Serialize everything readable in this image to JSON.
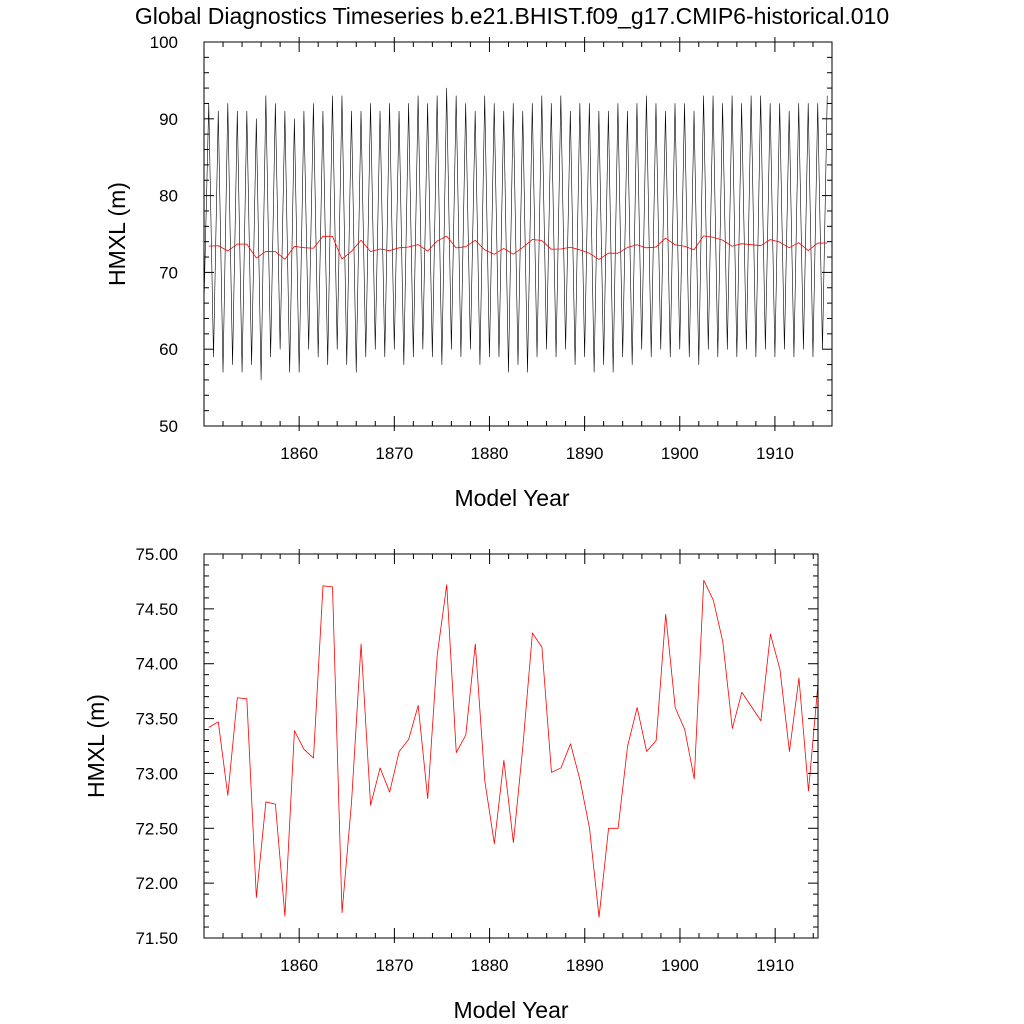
{
  "title": "Global Diagnostics Timeseries b.e21.BHIST.f09_g17.CMIP6-historical.010",
  "colors": {
    "annual": "#ff0000",
    "monthly": "#000000",
    "axis": "#000000"
  },
  "chart_data": [
    {
      "type": "line",
      "xlabel": "Model Year",
      "ylabel": "HMXL (m)",
      "xlim": [
        1850,
        1916
      ],
      "ylim": [
        50,
        100
      ],
      "xticks": [
        "1860",
        "1870",
        "1880",
        "1890",
        "1900",
        "1910"
      ],
      "yticks": [
        "50",
        "60",
        "70",
        "80",
        "90",
        "100"
      ],
      "grid": false,
      "series": [
        {
          "color": "#000000",
          "kind": "monthly",
          "x": [
            1850.0,
            1850.5,
            1851.0,
            1851.5,
            1852.0,
            1852.5,
            1853.0,
            1853.5,
            1854.0,
            1854.5,
            1855.0,
            1855.5,
            1856.0,
            1856.5,
            1857.0,
            1857.5,
            1858.0,
            1858.5,
            1859.0,
            1859.5,
            1860.0,
            1860.5,
            1861.0,
            1861.5,
            1862.0,
            1862.5,
            1863.0,
            1863.5,
            1864.0,
            1864.5,
            1865.0,
            1865.5,
            1866.0,
            1866.5,
            1867.0,
            1867.5,
            1868.0,
            1868.5,
            1869.0,
            1869.5,
            1870.0,
            1870.5,
            1871.0,
            1871.5,
            1872.0,
            1872.5,
            1873.0,
            1873.5,
            1874.0,
            1874.5,
            1875.0,
            1875.5,
            1876.0,
            1876.5,
            1877.0,
            1877.5,
            1878.0,
            1878.5,
            1879.0,
            1879.5,
            1880.0,
            1880.5,
            1881.0,
            1881.5,
            1882.0,
            1882.5,
            1883.0,
            1883.5,
            1884.0,
            1884.5,
            1885.0,
            1885.5,
            1886.0,
            1886.5,
            1887.0,
            1887.5,
            1888.0,
            1888.5,
            1889.0,
            1889.5,
            1890.0,
            1890.5,
            1891.0,
            1891.5,
            1892.0,
            1892.5,
            1893.0,
            1893.5,
            1894.0,
            1894.5,
            1895.0,
            1895.5,
            1896.0,
            1896.5,
            1897.0,
            1897.5,
            1898.0,
            1898.5,
            1899.0,
            1899.5,
            1900.0,
            1900.5,
            1901.0,
            1901.5,
            1902.0,
            1902.5,
            1903.0,
            1903.5,
            1904.0,
            1904.5,
            1905.0,
            1905.5,
            1906.0,
            1906.5,
            1907.0,
            1907.5,
            1908.0,
            1908.5,
            1909.0,
            1909.5,
            1910.0,
            1910.5,
            1911.0,
            1911.5,
            1912.0,
            1912.5,
            1913.0,
            1913.5,
            1914.0,
            1914.5,
            1915.0,
            1915.5
          ],
          "y": [
            66,
            92,
            59,
            91,
            57,
            92,
            58,
            91,
            57,
            91,
            58,
            90,
            56,
            93,
            59,
            92,
            60,
            91,
            57,
            90,
            57,
            91,
            60,
            92,
            59,
            91,
            58,
            93,
            60,
            93,
            58,
            91,
            57,
            91,
            59,
            92,
            60,
            91,
            59,
            92,
            60,
            91,
            58,
            92,
            59,
            93,
            60,
            92,
            59,
            93,
            58,
            94,
            60,
            93,
            59,
            92,
            60,
            91,
            58,
            93,
            59,
            92,
            59,
            91,
            57,
            92,
            58,
            91,
            57,
            92,
            59,
            93,
            60,
            92,
            59,
            93,
            60,
            91,
            58,
            92,
            59,
            92,
            57,
            91,
            58,
            91,
            57,
            92,
            59,
            91,
            58,
            92,
            60,
            93,
            59,
            92,
            60,
            91,
            59,
            92,
            60,
            92,
            59,
            91,
            58,
            93,
            60,
            93,
            59,
            92,
            60,
            93,
            59,
            92,
            60,
            93,
            59,
            93,
            60,
            92,
            59,
            92,
            60,
            91,
            59,
            92,
            60,
            92,
            59,
            92,
            60,
            93
          ]
        },
        {
          "color": "#ff0000",
          "kind": "annual",
          "x": [
            1850.5,
            1851.5,
            1852.5,
            1853.5,
            1854.5,
            1855.5,
            1856.5,
            1857.5,
            1858.5,
            1859.5,
            1860.5,
            1861.5,
            1862.5,
            1863.5,
            1864.5,
            1865.5,
            1866.5,
            1867.5,
            1868.5,
            1869.5,
            1870.5,
            1871.5,
            1872.5,
            1873.5,
            1874.5,
            1875.5,
            1876.5,
            1877.5,
            1878.5,
            1879.5,
            1880.5,
            1881.5,
            1882.5,
            1883.5,
            1884.5,
            1885.5,
            1886.5,
            1887.5,
            1888.5,
            1889.5,
            1890.5,
            1891.5,
            1892.5,
            1893.5,
            1894.5,
            1895.5,
            1896.5,
            1897.5,
            1898.5,
            1899.5,
            1900.5,
            1901.5,
            1902.5,
            1903.5,
            1904.5,
            1905.5,
            1906.5,
            1907.5,
            1908.5,
            1909.5,
            1910.5,
            1911.5,
            1912.5,
            1913.5,
            1914.5,
            1915.5
          ],
          "y": [
            73.42,
            73.47,
            72.8,
            73.69,
            73.68,
            71.87,
            72.74,
            72.72,
            71.7,
            73.39,
            73.22,
            73.14,
            74.71,
            74.7,
            71.73,
            72.74,
            74.18,
            72.71,
            73.05,
            72.83,
            73.2,
            73.31,
            73.62,
            72.77,
            74.08,
            74.72,
            73.19,
            73.35,
            74.18,
            72.93,
            72.36,
            73.12,
            72.37,
            73.25,
            74.28,
            74.15,
            73.01,
            73.05,
            73.27,
            72.94,
            72.5,
            71.69,
            72.5,
            72.5,
            73.25,
            73.6,
            73.2,
            73.3,
            74.45,
            73.6,
            73.4,
            72.95,
            74.76,
            74.58,
            74.2,
            73.41,
            73.74,
            73.61,
            73.48,
            74.27,
            73.95,
            73.2,
            73.87,
            72.84,
            73.82,
            73.82
          ]
        }
      ]
    },
    {
      "type": "line",
      "xlabel": "Model Year",
      "ylabel": "HMXL (m)",
      "xlim": [
        1850,
        1914.5
      ],
      "ylim": [
        71.5,
        75.0
      ],
      "xticks": [
        "1860",
        "1870",
        "1880",
        "1890",
        "1900",
        "1910"
      ],
      "yticks": [
        "71.50",
        "72.00",
        "72.50",
        "73.00",
        "73.50",
        "74.00",
        "74.50",
        "75.00"
      ],
      "grid": false,
      "series": [
        {
          "color": "#ff0000",
          "kind": "annual",
          "x": [
            1850.5,
            1851.5,
            1852.5,
            1853.5,
            1854.5,
            1855.5,
            1856.5,
            1857.5,
            1858.5,
            1859.5,
            1860.5,
            1861.5,
            1862.5,
            1863.5,
            1864.5,
            1865.5,
            1866.5,
            1867.5,
            1868.5,
            1869.5,
            1870.5,
            1871.5,
            1872.5,
            1873.5,
            1874.5,
            1875.5,
            1876.5,
            1877.5,
            1878.5,
            1879.5,
            1880.5,
            1881.5,
            1882.5,
            1883.5,
            1884.5,
            1885.5,
            1886.5,
            1887.5,
            1888.5,
            1889.5,
            1890.5,
            1891.5,
            1892.5,
            1893.5,
            1894.5,
            1895.5,
            1896.5,
            1897.5,
            1898.5,
            1899.5,
            1900.5,
            1901.5,
            1902.5,
            1903.5,
            1904.5,
            1905.5,
            1906.5,
            1907.5,
            1908.5,
            1909.5,
            1910.5,
            1911.5,
            1912.5,
            1913.5,
            1914.5
          ],
          "y": [
            73.42,
            73.47,
            72.8,
            73.69,
            73.68,
            71.87,
            72.74,
            72.72,
            71.7,
            73.39,
            73.22,
            73.14,
            74.71,
            74.7,
            71.73,
            72.74,
            74.18,
            72.71,
            73.05,
            72.83,
            73.2,
            73.31,
            73.62,
            72.77,
            74.08,
            74.72,
            73.19,
            73.35,
            74.18,
            72.93,
            72.36,
            73.12,
            72.37,
            73.25,
            74.28,
            74.15,
            73.01,
            73.05,
            73.27,
            72.94,
            72.5,
            71.69,
            72.5,
            72.5,
            73.25,
            73.6,
            73.2,
            73.3,
            74.45,
            73.6,
            73.4,
            72.95,
            74.76,
            74.58,
            74.2,
            73.41,
            73.74,
            73.61,
            73.48,
            74.27,
            73.95,
            73.2,
            73.87,
            72.84,
            73.82
          ]
        }
      ]
    }
  ]
}
